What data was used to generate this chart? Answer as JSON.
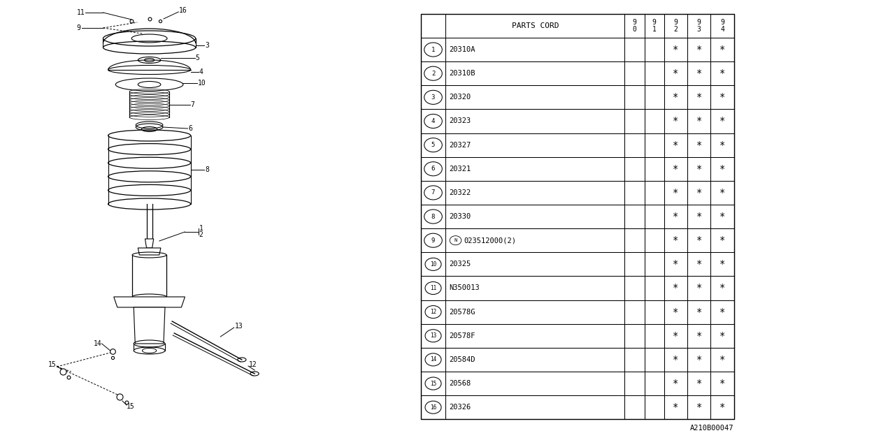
{
  "diagram_ref": "A210B00047",
  "parts": [
    {
      "num": 1,
      "code": "20310A",
      "has_N": false,
      "cols": [
        false,
        false,
        true,
        true,
        true
      ]
    },
    {
      "num": 2,
      "code": "20310B",
      "has_N": false,
      "cols": [
        false,
        false,
        true,
        true,
        true
      ]
    },
    {
      "num": 3,
      "code": "20320",
      "has_N": false,
      "cols": [
        false,
        false,
        true,
        true,
        true
      ]
    },
    {
      "num": 4,
      "code": "20323",
      "has_N": false,
      "cols": [
        false,
        false,
        true,
        true,
        true
      ]
    },
    {
      "num": 5,
      "code": "20327",
      "has_N": false,
      "cols": [
        false,
        false,
        true,
        true,
        true
      ]
    },
    {
      "num": 6,
      "code": "20321",
      "has_N": false,
      "cols": [
        false,
        false,
        true,
        true,
        true
      ]
    },
    {
      "num": 7,
      "code": "20322",
      "has_N": false,
      "cols": [
        false,
        false,
        true,
        true,
        true
      ]
    },
    {
      "num": 8,
      "code": "20330",
      "has_N": false,
      "cols": [
        false,
        false,
        true,
        true,
        true
      ]
    },
    {
      "num": 9,
      "code": "023512000(2)",
      "has_N": true,
      "cols": [
        false,
        false,
        true,
        true,
        true
      ]
    },
    {
      "num": 10,
      "code": "20325",
      "has_N": false,
      "cols": [
        false,
        false,
        true,
        true,
        true
      ]
    },
    {
      "num": 11,
      "code": "N350013",
      "has_N": false,
      "cols": [
        false,
        false,
        true,
        true,
        true
      ]
    },
    {
      "num": 12,
      "code": "20578G",
      "has_N": false,
      "cols": [
        false,
        false,
        true,
        true,
        true
      ]
    },
    {
      "num": 13,
      "code": "20578F",
      "has_N": false,
      "cols": [
        false,
        false,
        true,
        true,
        true
      ]
    },
    {
      "num": 14,
      "code": "20584D",
      "has_N": false,
      "cols": [
        false,
        false,
        true,
        true,
        true
      ]
    },
    {
      "num": 15,
      "code": "20568",
      "has_N": false,
      "cols": [
        false,
        false,
        true,
        true,
        true
      ]
    },
    {
      "num": 16,
      "code": "20326",
      "has_N": false,
      "cols": [
        false,
        false,
        true,
        true,
        true
      ]
    }
  ],
  "bg_color": "#ffffff",
  "line_color": "#000000",
  "text_color": "#000000"
}
